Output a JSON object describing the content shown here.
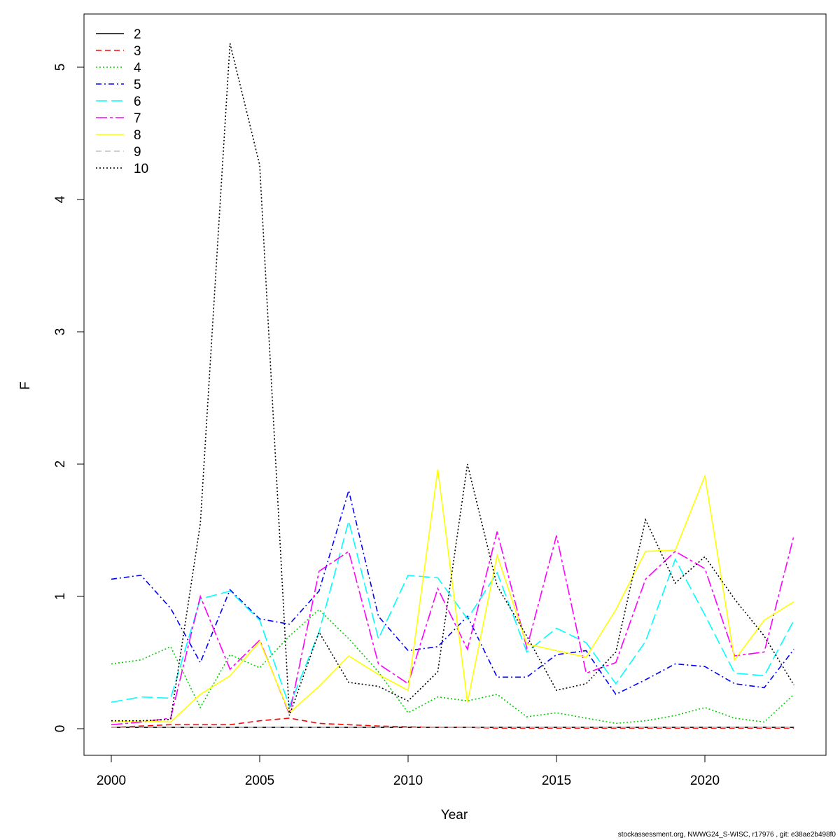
{
  "chart_data": {
    "type": "line",
    "title": "",
    "xlabel": "Year",
    "ylabel": "F",
    "xlim": [
      2000,
      2023
    ],
    "ylim": [
      0,
      5.2
    ],
    "xticks": [
      2000,
      2005,
      2010,
      2015,
      2020
    ],
    "yticks": [
      0,
      1,
      2,
      3,
      4,
      5
    ],
    "grid": false,
    "legend_position": "top-left",
    "x": [
      2000,
      2001,
      2002,
      2003,
      2004,
      2005,
      2006,
      2007,
      2008,
      2009,
      2010,
      2011,
      2012,
      2013,
      2014,
      2015,
      2016,
      2017,
      2018,
      2019,
      2020,
      2021,
      2022,
      2023
    ],
    "series": [
      {
        "name": "2",
        "color": "#000000",
        "dash": "",
        "values": [
          0.01,
          0.01,
          0.01,
          0.01,
          0.01,
          0.01,
          0.01,
          0.01,
          0.01,
          0.01,
          0.01,
          0.01,
          0.01,
          0.01,
          0.01,
          0.01,
          0.01,
          0.01,
          0.01,
          0.01,
          0.01,
          0.01,
          0.01,
          0.01
        ]
      },
      {
        "name": "3",
        "color": "#ff0000",
        "dash": "8,5",
        "values": [
          0.01,
          0.02,
          0.03,
          0.03,
          0.03,
          0.06,
          0.08,
          0.04,
          0.03,
          0.02,
          0.015,
          0.01,
          0.01,
          0.005,
          0.005,
          0.005,
          0.005,
          0.005,
          0.005,
          0.005,
          0.005,
          0.005,
          0.005,
          0.005
        ]
      },
      {
        "name": "4",
        "color": "#00cd00",
        "dash": "2,3",
        "values": [
          0.49,
          0.52,
          0.62,
          0.16,
          0.56,
          0.46,
          0.7,
          0.9,
          0.68,
          0.43,
          0.12,
          0.24,
          0.21,
          0.26,
          0.09,
          0.12,
          0.08,
          0.04,
          0.06,
          0.1,
          0.16,
          0.08,
          0.05,
          0.26
        ]
      },
      {
        "name": "5",
        "color": "#0000ff",
        "dash": "8,4,2,4",
        "values": [
          1.13,
          1.16,
          0.91,
          0.5,
          1.05,
          0.83,
          0.79,
          1.04,
          1.8,
          0.85,
          0.59,
          0.62,
          0.85,
          0.39,
          0.39,
          0.56,
          0.59,
          0.26,
          0.37,
          0.49,
          0.47,
          0.34,
          0.31,
          0.6
        ]
      },
      {
        "name": "6",
        "color": "#00ffff",
        "dash": "16,6",
        "values": [
          0.2,
          0.24,
          0.23,
          0.98,
          1.04,
          0.82,
          0.17,
          0.73,
          1.57,
          0.68,
          1.16,
          1.14,
          0.83,
          1.18,
          0.58,
          0.76,
          0.65,
          0.34,
          0.66,
          1.28,
          0.86,
          0.42,
          0.4,
          0.82
        ]
      },
      {
        "name": "7",
        "color": "#ff00ff",
        "dash": "16,4,4,4",
        "values": [
          0.03,
          0.05,
          0.08,
          1.0,
          0.45,
          0.67,
          0.11,
          1.19,
          1.34,
          0.49,
          0.34,
          1.06,
          0.6,
          1.49,
          0.61,
          1.46,
          0.42,
          0.5,
          1.13,
          1.34,
          1.21,
          0.55,
          0.58,
          1.46
        ]
      },
      {
        "name": "8",
        "color": "#ffff00",
        "dash": "",
        "values": [
          0.05,
          0.06,
          0.05,
          0.26,
          0.4,
          0.66,
          0.12,
          0.32,
          0.55,
          0.41,
          0.29,
          1.96,
          0.2,
          1.31,
          0.64,
          0.59,
          0.54,
          0.9,
          1.34,
          1.35,
          1.91,
          0.52,
          0.82,
          0.96
        ]
      },
      {
        "name": "9",
        "color": "#bebebe",
        "dash": "8,5",
        "values": [
          0.01,
          0.01,
          0.01,
          0.01,
          0.01,
          0.01,
          0.01,
          0.01,
          0.01,
          0.01,
          0.01,
          0.01,
          0.01,
          0.01,
          0.01,
          0.01,
          0.01,
          0.01,
          0.01,
          0.01,
          0.01,
          0.01,
          0.01,
          0.01
        ]
      },
      {
        "name": "10",
        "color": "#000000",
        "dash": "2,3",
        "values": [
          0.06,
          0.06,
          0.07,
          1.55,
          5.18,
          4.26,
          0.1,
          0.73,
          0.35,
          0.32,
          0.21,
          0.43,
          2.0,
          1.08,
          0.7,
          0.29,
          0.34,
          0.58,
          1.58,
          1.1,
          1.3,
          0.98,
          0.7,
          0.33
        ]
      }
    ]
  },
  "footer": "stockassessment.org, NWWG24_S-WISC, r17976 , git: e38ae2b498f0"
}
